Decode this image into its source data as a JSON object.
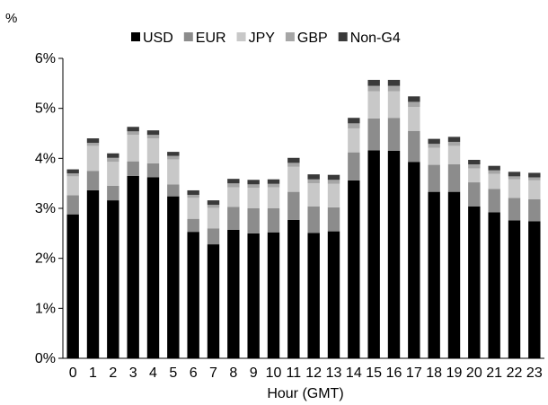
{
  "chart_data": {
    "type": "bar",
    "stacked": true,
    "y_unit_label": "%",
    "xlabel": "Hour (GMT)",
    "ylabel": "",
    "ylim": [
      0,
      6
    ],
    "yticks": [
      "0%",
      "1%",
      "2%",
      "3%",
      "4%",
      "5%",
      "6%"
    ],
    "grid": false,
    "legend_position": "top",
    "categories": [
      "0",
      "1",
      "2",
      "3",
      "4",
      "5",
      "6",
      "7",
      "8",
      "9",
      "10",
      "11",
      "12",
      "13",
      "14",
      "15",
      "16",
      "17",
      "18",
      "19",
      "20",
      "21",
      "22",
      "23"
    ],
    "series": [
      {
        "name": "USD",
        "color": "#000000",
        "values": [
          2.88,
          3.36,
          3.16,
          3.65,
          3.62,
          3.24,
          2.53,
          2.28,
          2.57,
          2.5,
          2.52,
          2.77,
          2.51,
          2.54,
          3.56,
          4.16,
          4.15,
          3.93,
          3.33,
          3.33,
          3.04,
          2.92,
          2.76,
          2.74
        ]
      },
      {
        "name": "EUR",
        "color": "#8c8c8c",
        "values": [
          0.38,
          0.39,
          0.29,
          0.29,
          0.28,
          0.24,
          0.26,
          0.32,
          0.46,
          0.5,
          0.48,
          0.56,
          0.53,
          0.48,
          0.56,
          0.64,
          0.66,
          0.62,
          0.54,
          0.55,
          0.48,
          0.47,
          0.45,
          0.44
        ]
      },
      {
        "name": "JPY",
        "color": "#c8c8c8",
        "values": [
          0.38,
          0.5,
          0.48,
          0.53,
          0.5,
          0.5,
          0.42,
          0.41,
          0.39,
          0.41,
          0.42,
          0.5,
          0.46,
          0.47,
          0.48,
          0.54,
          0.53,
          0.48,
          0.34,
          0.37,
          0.28,
          0.3,
          0.37,
          0.38
        ]
      },
      {
        "name": "GBP",
        "color": "#a6a6a6",
        "values": [
          0.06,
          0.06,
          0.08,
          0.07,
          0.07,
          0.07,
          0.06,
          0.06,
          0.08,
          0.07,
          0.07,
          0.08,
          0.08,
          0.08,
          0.1,
          0.11,
          0.11,
          0.1,
          0.08,
          0.08,
          0.08,
          0.07,
          0.06,
          0.06
        ]
      },
      {
        "name": "Non-G4",
        "color": "#3a3a3a",
        "values": [
          0.08,
          0.09,
          0.09,
          0.09,
          0.09,
          0.08,
          0.09,
          0.09,
          0.09,
          0.09,
          0.09,
          0.1,
          0.1,
          0.1,
          0.11,
          0.12,
          0.12,
          0.11,
          0.1,
          0.1,
          0.09,
          0.09,
          0.09,
          0.09
        ]
      }
    ]
  }
}
